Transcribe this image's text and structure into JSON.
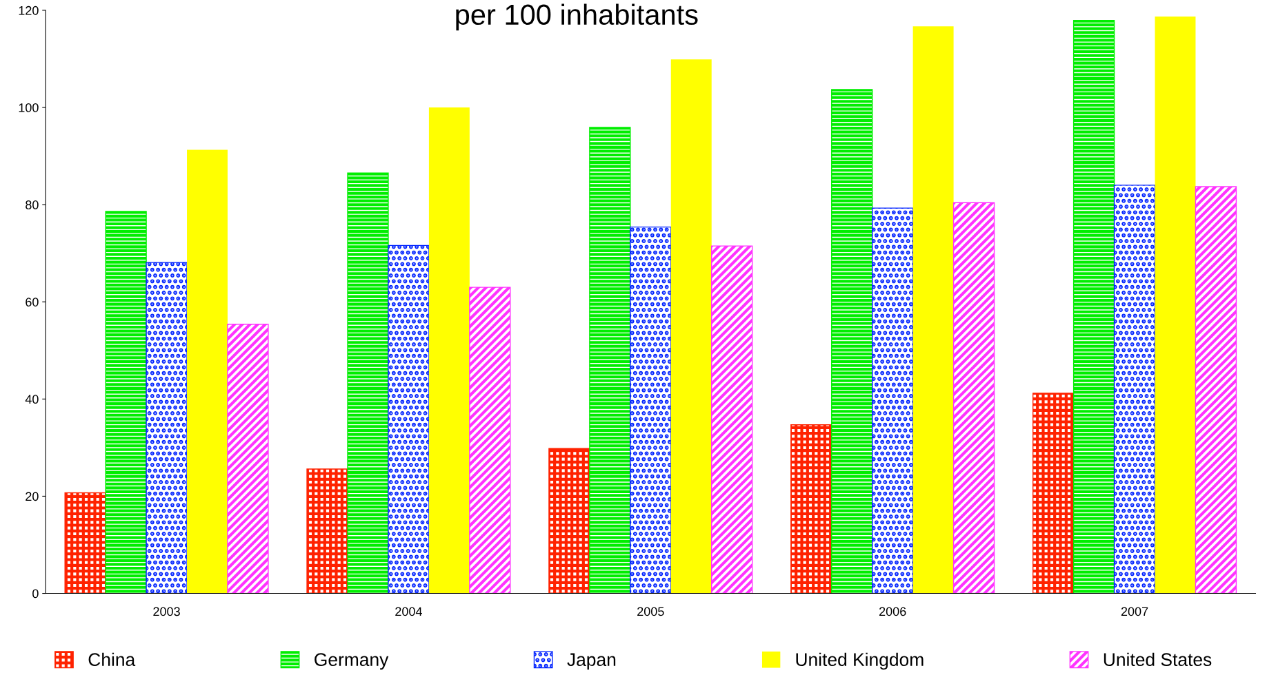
{
  "chart_data": {
    "type": "bar",
    "title": "per 100 inhabitants",
    "categories": [
      "2003",
      "2004",
      "2005",
      "2006",
      "2007"
    ],
    "series": [
      {
        "name": "China",
        "color": "#ff2200",
        "values": [
          20.7,
          25.6,
          29.8,
          34.7,
          41.2
        ]
      },
      {
        "name": "Germany",
        "color": "#00ee00",
        "values": [
          78.6,
          86.5,
          95.9,
          103.7,
          117.9
        ]
      },
      {
        "name": "Japan",
        "color": "#0022ff",
        "values": [
          68.1,
          71.6,
          75.4,
          79.3,
          84.0
        ]
      },
      {
        "name": "United Kingdom",
        "color": "#ffff00",
        "values": [
          91.3,
          100.0,
          109.9,
          116.7,
          118.7
        ]
      },
      {
        "name": "United States",
        "color": "#ff33ff",
        "values": [
          55.4,
          63.0,
          71.5,
          80.4,
          83.7
        ]
      }
    ],
    "ylim": [
      0,
      120
    ],
    "yticks": [
      0,
      20,
      40,
      60,
      80,
      100,
      120
    ],
    "legend": "bottom"
  }
}
